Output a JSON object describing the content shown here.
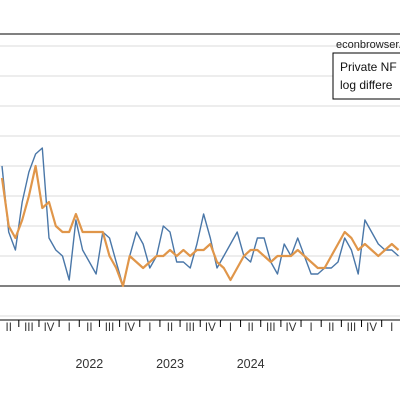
{
  "chart_data": {
    "type": "line",
    "source_label": "econbrowser.",
    "legend_lines": [
      "Private NF",
      "log differe"
    ],
    "colors": {
      "series_blue": "#4a77a8",
      "series_orange": "#e0964a",
      "zero_line": "#000000",
      "grid": "#cfcfcf"
    },
    "grid": true,
    "x_tick_labels": [
      "II",
      "III",
      "IV",
      "I",
      "II",
      "III",
      "IV",
      "I",
      "II",
      "III",
      "IV",
      "I",
      "II",
      "III",
      "IV",
      "I",
      "II",
      "III",
      "IV",
      "I",
      "II"
    ],
    "year_labels": [
      {
        "label": "2022",
        "x": "2022-05"
      },
      {
        "label": "2023",
        "x": "2023-05"
      },
      {
        "label": "2024",
        "x": "2024-05"
      }
    ],
    "x_month_start": "2021-04",
    "series": [
      {
        "color": "series_blue",
        "values": [
          2.0,
          0.9,
          0.6,
          1.4,
          1.9,
          2.2,
          2.3,
          0.8,
          0.6,
          0.5,
          0.1,
          1.1,
          0.6,
          0.4,
          0.2,
          0.9,
          0.8,
          0.4,
          0.0,
          0.5,
          0.9,
          0.7,
          0.3,
          0.5,
          1.0,
          0.9,
          0.4,
          0.4,
          0.3,
          0.7,
          1.2,
          0.8,
          0.3,
          0.5,
          0.7,
          0.9,
          0.5,
          0.4,
          0.8,
          0.8,
          0.4,
          0.2,
          0.7,
          0.5,
          0.8,
          0.5,
          0.2,
          0.2,
          0.3,
          0.3,
          0.4,
          0.8,
          0.6,
          0.2,
          1.1,
          0.9,
          0.7,
          0.6,
          0.6,
          0.5
        ]
      },
      {
        "color": "series_orange",
        "values": [
          1.8,
          1.0,
          0.8,
          1.1,
          1.5,
          2.0,
          1.3,
          1.4,
          1.0,
          0.9,
          0.9,
          1.2,
          0.9,
          0.9,
          0.9,
          0.9,
          0.5,
          0.3,
          0.0,
          0.5,
          0.4,
          0.3,
          0.4,
          0.5,
          0.5,
          0.6,
          0.5,
          0.6,
          0.5,
          0.6,
          0.6,
          0.7,
          0.4,
          0.3,
          0.1,
          0.3,
          0.5,
          0.6,
          0.6,
          0.5,
          0.4,
          0.5,
          0.5,
          0.5,
          0.6,
          0.5,
          0.4,
          0.3,
          0.3,
          0.5,
          0.7,
          0.9,
          0.8,
          0.6,
          0.7,
          0.6,
          0.5,
          0.6,
          0.7,
          0.6
        ]
      }
    ]
  }
}
